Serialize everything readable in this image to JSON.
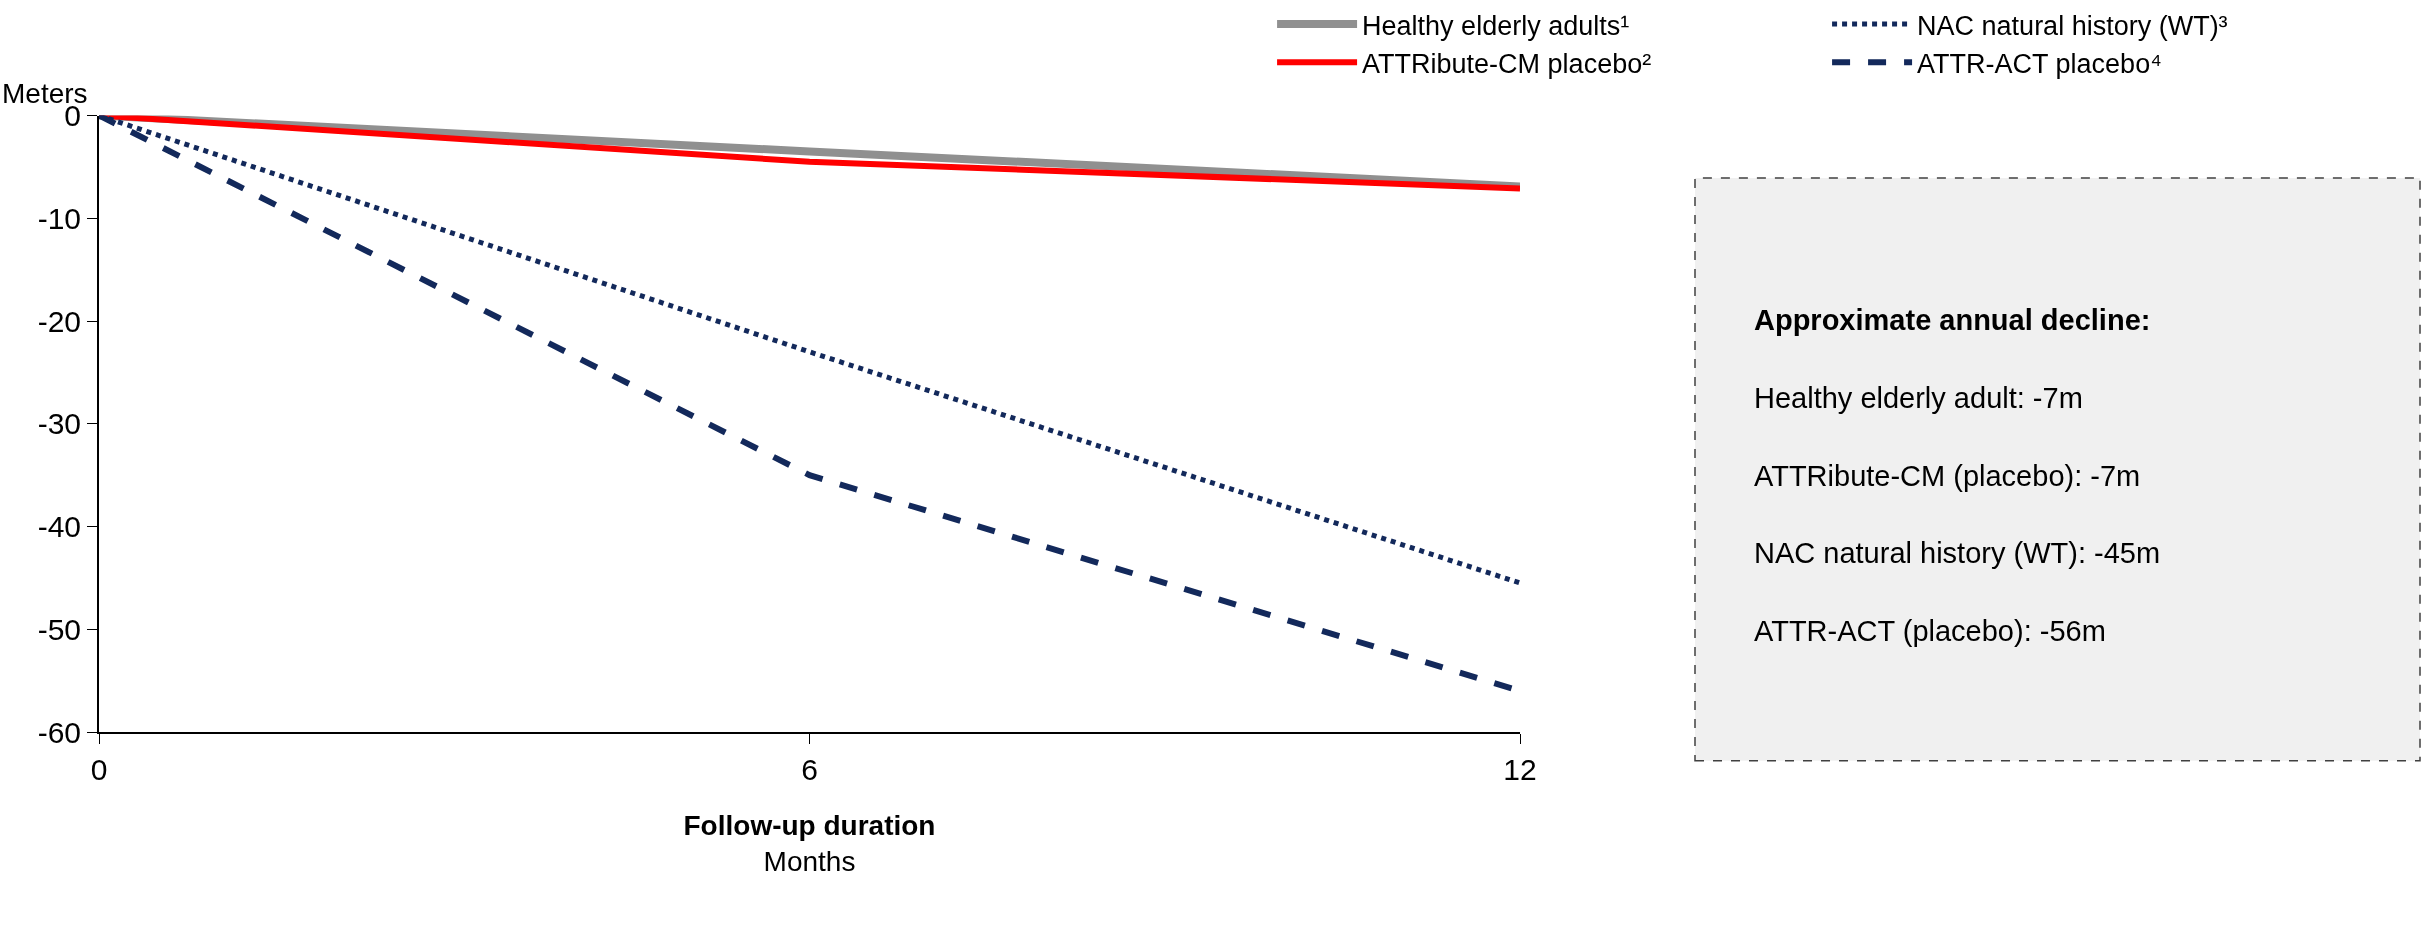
{
  "chart_data": {
    "type": "line",
    "ylabel": "Meters",
    "xlabel": "Follow-up duration\nMonths",
    "x": [
      0,
      6,
      12
    ],
    "series": [
      {
        "name": "Healthy elderly adults¹",
        "color": "#909090",
        "values": [
          0,
          -3.5,
          -6.9
        ],
        "line_style": "solid"
      },
      {
        "name": "ATTRibute-CM placebo²",
        "color": "#ff0000",
        "values": [
          0,
          -4.5,
          -7.1
        ],
        "line_style": "solid"
      },
      {
        "name": "NAC natural history (WT)³",
        "color": "#13295b",
        "values": [
          0,
          -23,
          -45.5
        ],
        "line_style": "dotted"
      },
      {
        "name": "ATTR-ACT placebo⁴",
        "color": "#13295b",
        "values": [
          0,
          -35,
          -56
        ],
        "line_style": "dashed"
      }
    ],
    "xlim": [
      0,
      12
    ],
    "xticks": [
      0,
      6,
      12
    ],
    "ylim": [
      -60,
      0
    ],
    "yticks": [
      -60,
      -50,
      -40,
      -30,
      -20,
      -10,
      0
    ],
    "legend": "top right",
    "marker": "none",
    "annotations": [
      "Approximate annual decline:",
      "Healthy elderly adult: -7m",
      "ATTRibute-CM (placebo): -7m",
      "NAC natural history (WT): -45m",
      "ATTR-ACT (placebo): -56m"
    ]
  }
}
